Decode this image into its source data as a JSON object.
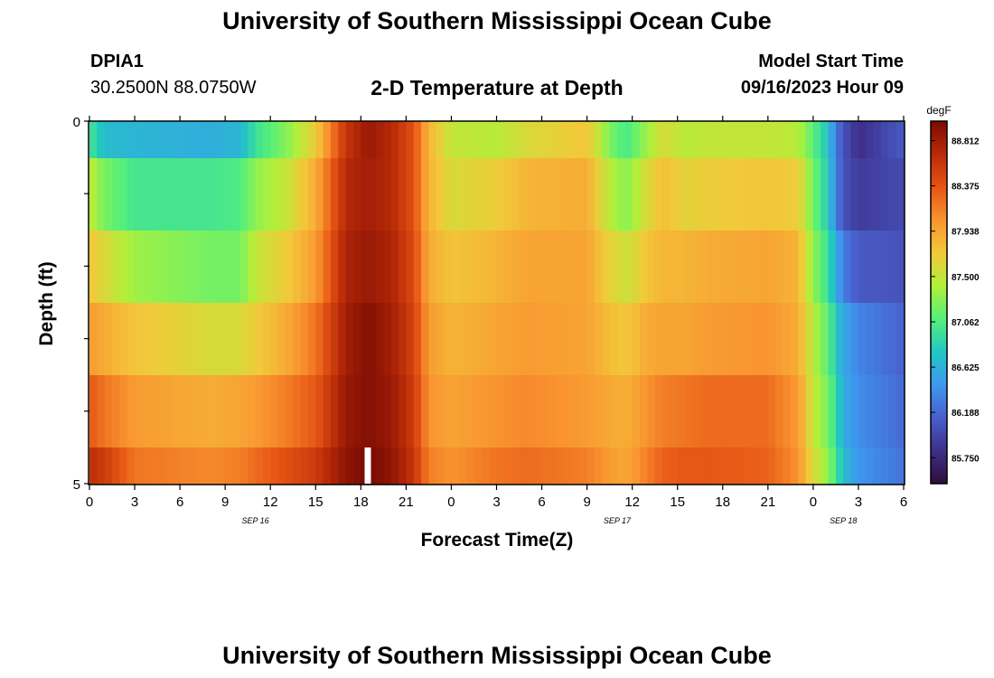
{
  "header": {
    "title": "University of Southern Mississippi Ocean Cube",
    "station": "DPIA1",
    "coords": "30.2500N  88.0750W",
    "subtitle": "2-D Temperature at Depth",
    "model_start_label": "Model Start Time",
    "model_start_value": "09/16/2023 Hour 09"
  },
  "footer": {
    "title": "University of Southern Mississippi Ocean Cube"
  },
  "chart_data": {
    "type": "heatmap",
    "title": "2-D Temperature at Depth",
    "xlabel": "Forecast Time(Z)",
    "ylabel": "Depth (ft)",
    "x_ticks": [
      "0",
      "3",
      "6",
      "9",
      "12",
      "15",
      "18",
      "21",
      "0",
      "3",
      "6",
      "9",
      "12",
      "15",
      "18",
      "21",
      "0",
      "3",
      "6"
    ],
    "date_labels": [
      {
        "label": "SEP 16",
        "at_hour": 11
      },
      {
        "label": "SEP 17",
        "at_hour": 35
      },
      {
        "label": "SEP 18",
        "at_hour": 50
      }
    ],
    "x_range_hours": [
      0,
      54
    ],
    "y_ticks": [
      "0",
      "5"
    ],
    "y_range": [
      0,
      5
    ],
    "depth_rows": 6,
    "colorbar": {
      "unit": "degF",
      "min": 85.5,
      "max": 89.0,
      "tick_labels": [
        "88.812",
        "88.375",
        "87.938",
        "87.500",
        "87.062",
        "86.625",
        "86.188",
        "85.750"
      ],
      "colors": [
        "#2d0e3c",
        "#3e2f8a",
        "#4a5fcc",
        "#3d98f0",
        "#22c7c2",
        "#56f07a",
        "#aff03a",
        "#f2c93a",
        "#f99430",
        "#e65414",
        "#b92b08",
        "#7a0a03"
      ]
    },
    "row_profiles": [
      {
        "hours": [
          0,
          1,
          3,
          8,
          10,
          11,
          13,
          15,
          17,
          18.5,
          20,
          21.5,
          22.5,
          24,
          27,
          29,
          33,
          34,
          35,
          35.7,
          37,
          38,
          39.5,
          41,
          45,
          47,
          48,
          49,
          49.5,
          50,
          51,
          54
        ],
        "values": [
          87.0,
          86.7,
          86.65,
          86.6,
          86.65,
          86.95,
          87.25,
          87.7,
          88.6,
          88.85,
          88.7,
          88.4,
          87.85,
          87.5,
          87.45,
          87.6,
          87.75,
          87.4,
          87.1,
          87.05,
          87.35,
          87.6,
          87.45,
          87.5,
          87.5,
          87.45,
          87.1,
          86.75,
          86.3,
          86.05,
          85.8,
          86.1
        ]
      },
      {
        "hours": [
          0,
          1,
          3,
          8,
          10,
          11,
          13,
          15,
          17,
          18.5,
          20,
          21.5,
          22.5,
          24,
          27,
          29,
          33,
          34,
          35,
          35.7,
          37,
          38,
          39.5,
          41,
          45,
          47,
          48,
          49,
          49.5,
          50,
          51,
          54
        ],
        "values": [
          87.5,
          87.2,
          87.0,
          87.0,
          87.05,
          87.3,
          87.5,
          87.9,
          88.7,
          88.8,
          88.7,
          88.4,
          87.85,
          87.6,
          87.7,
          87.85,
          87.9,
          87.6,
          87.35,
          87.3,
          87.6,
          87.8,
          87.65,
          87.7,
          87.75,
          87.7,
          87.2,
          86.8,
          86.35,
          86.05,
          85.9,
          86.0
        ]
      },
      {
        "hours": [
          0,
          1,
          3,
          8,
          10,
          11,
          13,
          15,
          17,
          18.5,
          20,
          21.5,
          22.5,
          24,
          27,
          29,
          33,
          34,
          35,
          35.7,
          37,
          38,
          39.5,
          41,
          45,
          47,
          48,
          49,
          49.5,
          50,
          51,
          54
        ],
        "values": [
          87.75,
          87.6,
          87.35,
          87.2,
          87.2,
          87.5,
          87.7,
          88.0,
          88.75,
          88.85,
          88.75,
          88.45,
          87.9,
          87.75,
          87.85,
          87.95,
          87.95,
          87.75,
          87.6,
          87.55,
          87.75,
          87.85,
          87.85,
          87.9,
          87.95,
          87.85,
          87.3,
          86.95,
          86.6,
          86.3,
          86.1,
          86.05
        ]
      },
      {
        "hours": [
          0,
          1,
          3,
          8,
          10,
          11,
          13,
          15,
          17,
          18.5,
          20,
          21.5,
          22.5,
          24,
          27,
          29,
          33,
          34,
          35,
          35.7,
          37,
          38,
          39.5,
          41,
          45,
          47,
          48,
          49,
          49.5,
          50,
          51,
          54
        ],
        "values": [
          88.0,
          87.9,
          87.75,
          87.6,
          87.6,
          87.7,
          87.9,
          88.2,
          88.8,
          88.95,
          88.8,
          88.5,
          88.0,
          87.85,
          87.95,
          88.0,
          87.95,
          87.85,
          87.75,
          87.75,
          87.9,
          87.95,
          87.95,
          88.0,
          88.05,
          87.9,
          87.45,
          87.1,
          86.8,
          86.55,
          86.35,
          86.15
        ]
      },
      {
        "hours": [
          0,
          1,
          3,
          8,
          10,
          11,
          13,
          15,
          17,
          18.5,
          20,
          21.5,
          22.5,
          24,
          27,
          29,
          33,
          34,
          35,
          35.7,
          37,
          38,
          39.5,
          41,
          45,
          47,
          48,
          49,
          49.5,
          50,
          51,
          54
        ],
        "values": [
          88.35,
          88.2,
          88.0,
          87.9,
          87.95,
          88.0,
          88.15,
          88.35,
          88.85,
          88.95,
          88.85,
          88.55,
          88.05,
          87.95,
          88.05,
          88.1,
          88.0,
          87.95,
          87.9,
          87.9,
          88.05,
          88.15,
          88.2,
          88.25,
          88.25,
          88.0,
          87.5,
          87.2,
          86.9,
          86.6,
          86.4,
          86.2
        ]
      },
      {
        "hours": [
          0,
          1,
          3,
          8,
          10,
          11,
          13,
          15,
          17,
          18.5,
          20,
          21.5,
          22.5,
          24,
          27,
          29,
          33,
          34,
          35,
          35.7,
          37,
          38,
          39.5,
          41,
          45,
          47,
          48,
          49,
          49.5,
          50,
          51,
          54
        ],
        "values": [
          88.65,
          88.55,
          88.2,
          88.1,
          88.15,
          88.25,
          88.4,
          88.55,
          88.9,
          89.0,
          88.9,
          88.6,
          88.15,
          88.05,
          88.2,
          88.25,
          88.15,
          88.05,
          87.95,
          87.95,
          88.15,
          88.3,
          88.35,
          88.35,
          88.3,
          88.05,
          87.6,
          87.3,
          87.0,
          86.7,
          86.45,
          86.25
        ]
      }
    ],
    "missing_data": [
      {
        "hour": 18.25,
        "row": 5
      }
    ],
    "grid": false,
    "legend": "colorbar-right"
  }
}
